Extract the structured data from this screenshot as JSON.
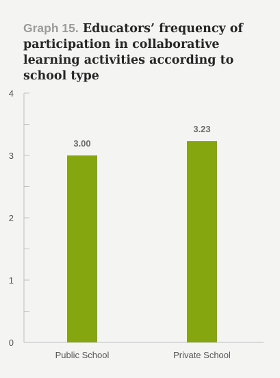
{
  "title": {
    "label": "Graph 15.",
    "text": "Educators’ frequency of participation in collaborative learning activities according to school type"
  },
  "colors": {
    "bar": "#86a60f",
    "axis": "#bdbdbd",
    "tick_text": "#555555",
    "value_text": "#6b6b6b"
  },
  "chart_data": {
    "type": "bar",
    "categories": [
      "Public School",
      "Private School"
    ],
    "values": [
      3.0,
      3.23
    ],
    "value_labels": [
      "3.00",
      "3.23"
    ],
    "ylim": [
      0,
      4
    ],
    "yticks": [
      0,
      1,
      2,
      3,
      4
    ],
    "minor_ticks": true,
    "grid": false
  }
}
